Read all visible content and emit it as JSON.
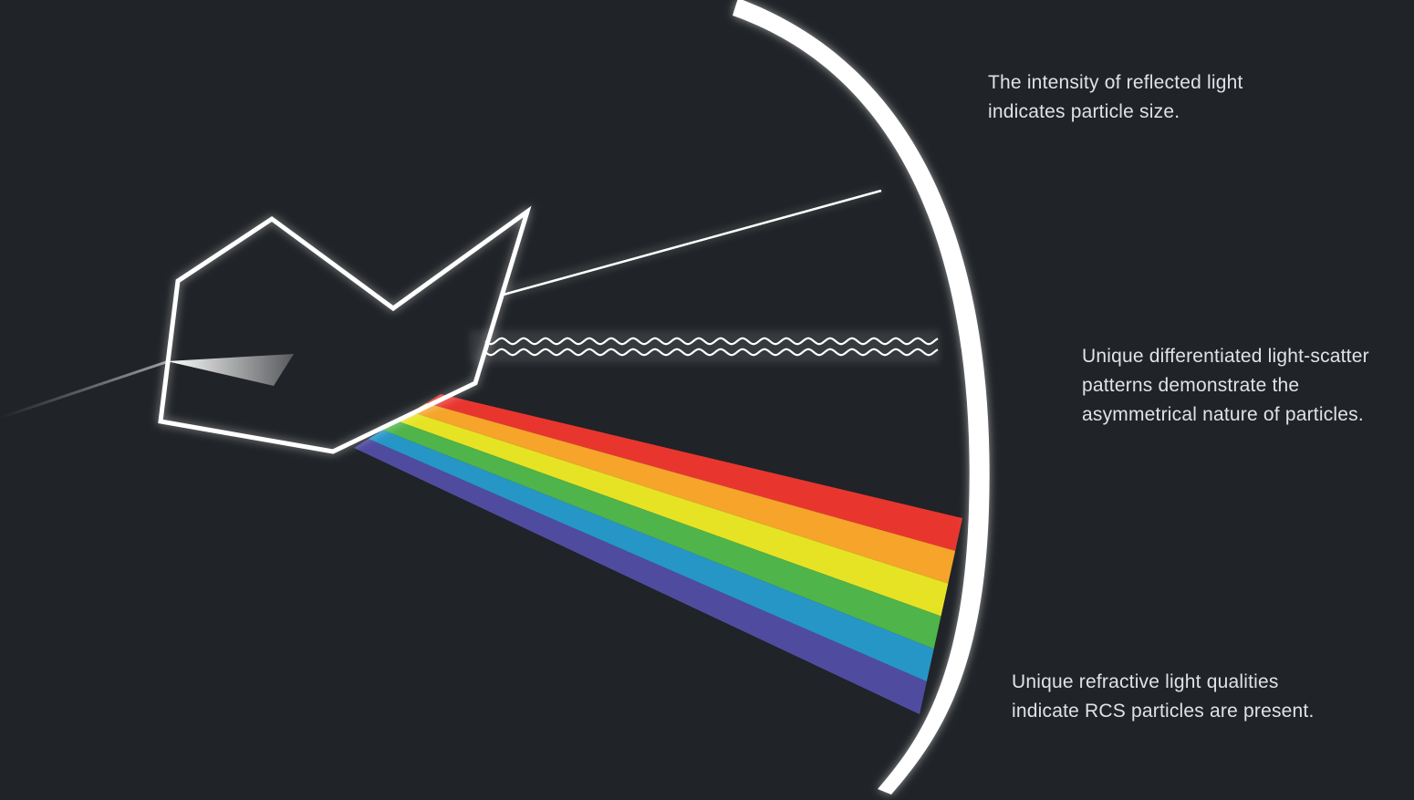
{
  "captions": {
    "reflected": [
      "The intensity of reflected light",
      "indicates particle size."
    ],
    "scatter": [
      "Unique differentiated light-scatter",
      "patterns demonstrate the",
      "asymmetrical nature of particles."
    ],
    "refractive": [
      "Unique refractive light qualities",
      "indicate RCS particles are present."
    ]
  },
  "colors": {
    "background": "#202327",
    "outline": "#ffffff",
    "text": "#dfe2e6",
    "spectrum": [
      "#e8362f",
      "#f6a42a",
      "#e6e324",
      "#4fb44a",
      "#2696c7",
      "#4f4ca0"
    ]
  }
}
